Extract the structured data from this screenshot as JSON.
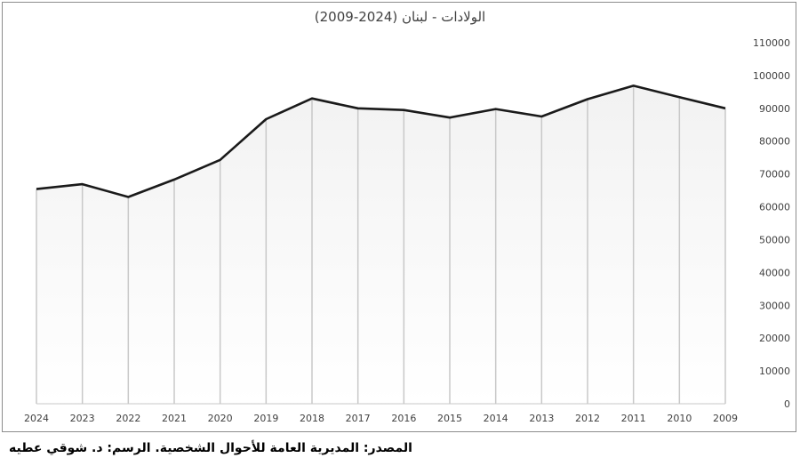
{
  "chart_data": {
    "type": "area",
    "title": "الولادات - لبنان (2024-2009)",
    "categories": [
      "2024",
      "2023",
      "2022",
      "2021",
      "2020",
      "2019",
      "2018",
      "2017",
      "2016",
      "2015",
      "2014",
      "2013",
      "2012",
      "2011",
      "2010",
      "2009"
    ],
    "series": [
      {
        "values": [
          65400,
          66900,
          63000,
          68300,
          74300,
          86700,
          93000,
          90000,
          89500,
          87200,
          89800,
          87500,
          92800,
          96900,
          93400,
          90000
        ]
      }
    ],
    "y_ticks": [
      "0",
      "10000",
      "20000",
      "30000",
      "40000",
      "50000",
      "60000",
      "70000",
      "80000",
      "90000",
      "100000",
      "110000"
    ],
    "ylim": [
      0,
      110000
    ],
    "y_axis_side": "right",
    "grid": "vertical drop lines",
    "colors": {
      "line": "#1a1a1a",
      "drop_lines": "#c8c8c8",
      "fill_top": "#f2f2f2",
      "fill_bottom": "#ffffff",
      "tick_text": "#404040"
    }
  },
  "footer": {
    "source": "المصدر: المديرية العامة للأحوال الشخصية. الرسم: د. شوقي عطيه"
  }
}
